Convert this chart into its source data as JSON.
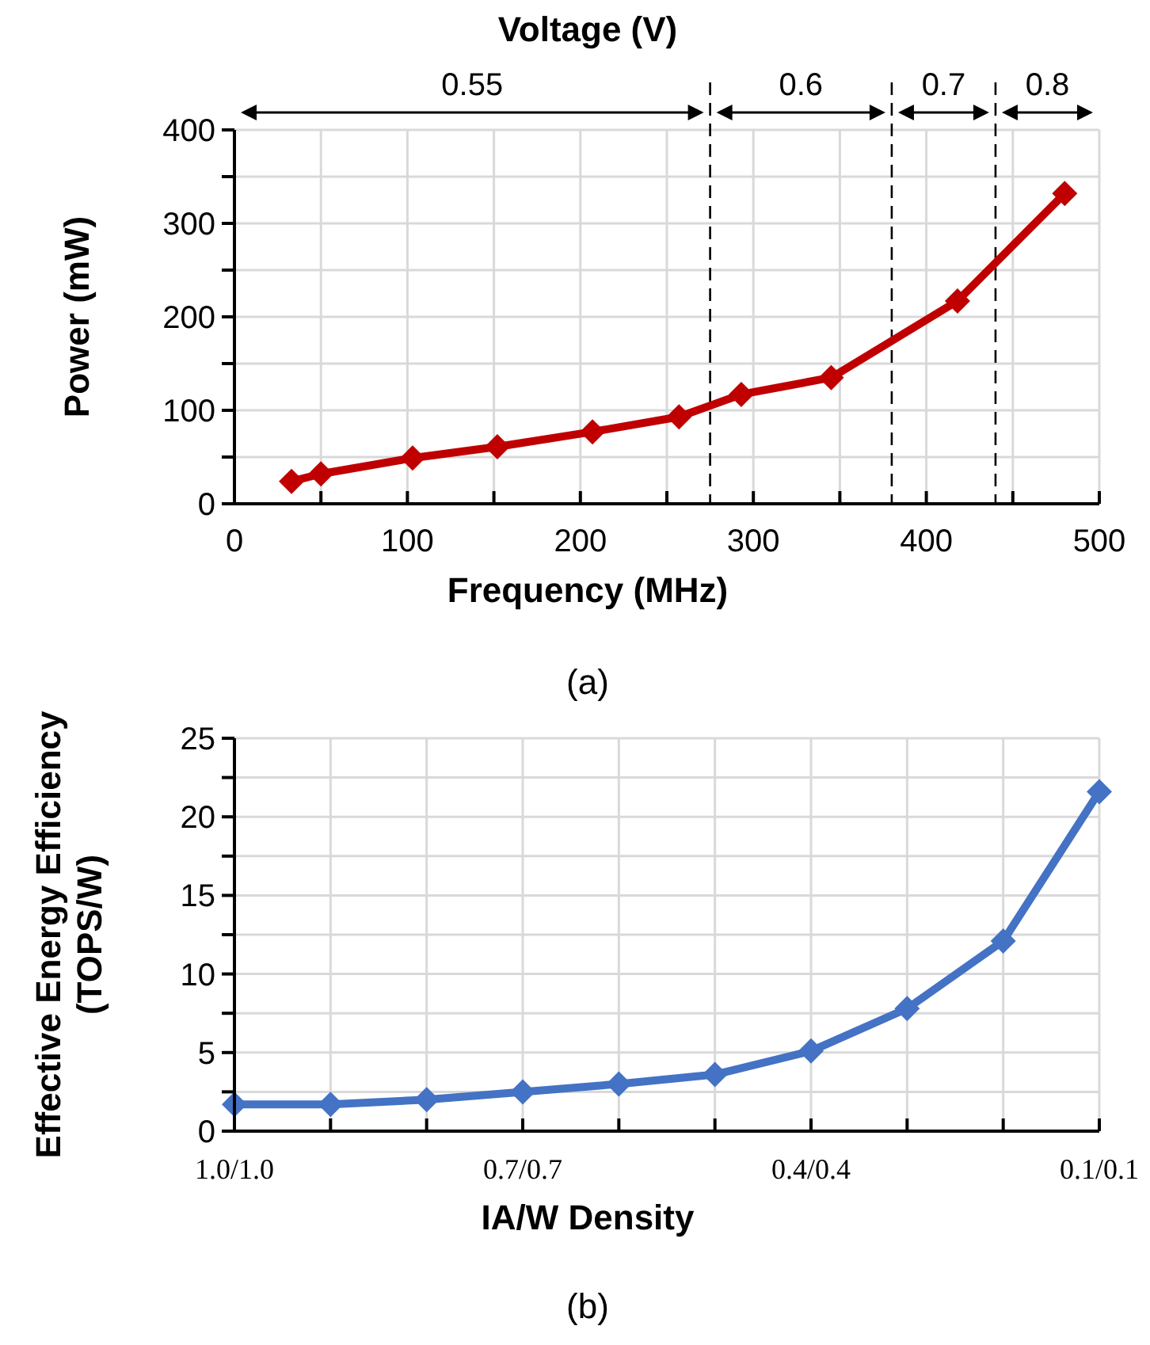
{
  "chart_data": [
    {
      "type": "line",
      "xlabel": "Frequency (MHz)",
      "ylabel": "Power (mW)",
      "annotations": [
        "Voltage (V)",
        "0.55",
        "0.6",
        "0.7",
        "0.8",
        "(a)"
      ],
      "x": [
        33,
        50,
        103,
        152,
        207,
        257,
        293,
        345,
        418,
        480
      ],
      "series": [
        {
          "color": "#c00000",
          "values": [
            24,
            32,
            49,
            61,
            77,
            93,
            117,
            135,
            217,
            332
          ]
        }
      ],
      "xlim": [
        0,
        500
      ],
      "xticks": [
        0,
        {
          "value": 50,
          "label": null
        },
        100,
        {
          "value": 150,
          "label": null
        },
        200,
        {
          "value": 250,
          "label": null
        },
        300,
        {
          "value": 350,
          "label": null
        },
        400,
        {
          "value": 450,
          "label": null
        },
        500
      ],
      "ylim": [
        0,
        400
      ],
      "yticks": [
        0,
        {
          "value": 50,
          "label": null
        },
        100,
        {
          "value": 150,
          "label": null
        },
        200,
        {
          "value": 250,
          "label": null
        },
        300,
        {
          "value": 350,
          "label": null
        },
        400
      ],
      "grid": true,
      "marker": "diamond",
      "line_style": "solid",
      "ref_lines": [
        {
          "axis": "x",
          "value": 275,
          "line_style": "dashed",
          "color": "#000000"
        },
        {
          "axis": "x",
          "value": 380,
          "line_style": "dashed",
          "color": "#000000"
        },
        {
          "axis": "x",
          "value": 440,
          "line_style": "dashed",
          "color": "#000000"
        }
      ]
    },
    {
      "type": "line",
      "xlabel": "IA/W Density",
      "ylabel": "Effective Energy Efficiency  (TOPS/W)",
      "annotations": [
        "(b)"
      ],
      "categories": [
        "1.0/1.0",
        null,
        null,
        "0.7/0.7",
        null,
        null,
        "0.4/0.4",
        null,
        null,
        "0.1/0.1"
      ],
      "series": [
        {
          "color": "#4472c4",
          "values": [
            1.7,
            1.7,
            2.0,
            2.5,
            3.0,
            3.6,
            5.1,
            7.8,
            12.1,
            21.6
          ]
        }
      ],
      "ylim": [
        0,
        25
      ],
      "yticks": [
        0,
        {
          "value": 2.5,
          "label": null
        },
        5,
        {
          "value": 7.5,
          "label": null
        },
        10,
        {
          "value": 12.5,
          "label": null
        },
        15,
        {
          "value": 17.5,
          "label": null
        },
        20,
        {
          "value": 22.5,
          "label": null
        },
        25
      ],
      "grid": true,
      "marker": "diamond",
      "line_style": "solid"
    }
  ]
}
